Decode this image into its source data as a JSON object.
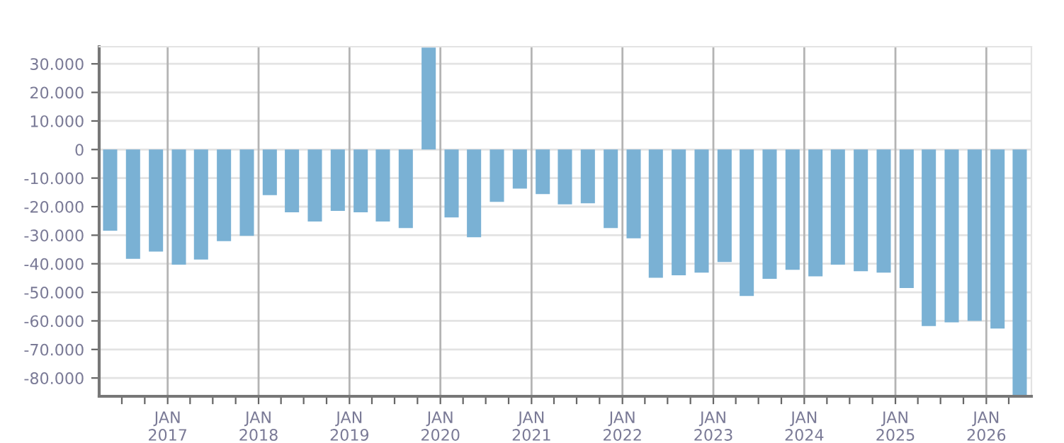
{
  "chart_data": {
    "type": "bar",
    "color": "#7ab1d4",
    "x": [
      "2016-05-15",
      "2016-08-15",
      "2016-11-15",
      "2017-02-15",
      "2017-05-15",
      "2017-08-15",
      "2017-11-15",
      "2018-02-15",
      "2018-05-15",
      "2018-08-15",
      "2018-11-15",
      "2019-02-15",
      "2019-05-15",
      "2019-08-15",
      "2019-11-15",
      "2020-02-15",
      "2020-05-15",
      "2020-08-15",
      "2020-11-15",
      "2021-02-15",
      "2021-05-15",
      "2021-08-15",
      "2021-11-15",
      "2022-02-15",
      "2022-05-15",
      "2022-08-15",
      "2022-11-15",
      "2023-02-15",
      "2023-05-15",
      "2023-08-15",
      "2023-11-15",
      "2024-02-15",
      "2024-05-15",
      "2024-08-15",
      "2024-11-15",
      "2025-02-15",
      "2025-05-15",
      "2025-08-15",
      "2025-11-15",
      "2026-02-15",
      "2026-05-15"
    ],
    "values": [
      -28400,
      -38300,
      -35700,
      -40300,
      -38500,
      -32100,
      -30200,
      -16000,
      -22000,
      -25200,
      -21500,
      -22000,
      -25200,
      -27500,
      35700,
      -23800,
      -30700,
      -18300,
      -13700,
      -15600,
      -19200,
      -18800,
      -27500,
      -31100,
      -44900,
      -44000,
      -43100,
      -39400,
      -51300,
      -45300,
      -42100,
      -44400,
      -40300,
      -42600,
      -43100,
      -48500,
      -61800,
      -60500,
      -60000,
      -62700,
      -86000
    ],
    "xlim": [
      "2016-04-01",
      "2026-07-01"
    ],
    "xticks": [
      {
        "value": "2016-07-01",
        "label": null
      },
      {
        "value": "2016-10-01",
        "label": null
      },
      {
        "value": "2017-01-01",
        "label": "JAN\n2017"
      },
      {
        "value": "2017-04-01",
        "label": null
      },
      {
        "value": "2017-07-01",
        "label": null
      },
      {
        "value": "2017-10-01",
        "label": null
      },
      {
        "value": "2018-01-01",
        "label": "JAN\n2018"
      },
      {
        "value": "2018-04-01",
        "label": null
      },
      {
        "value": "2018-07-01",
        "label": null
      },
      {
        "value": "2018-10-01",
        "label": null
      },
      {
        "value": "2019-01-01",
        "label": "JAN\n2019"
      },
      {
        "value": "2019-04-01",
        "label": null
      },
      {
        "value": "2019-07-01",
        "label": null
      },
      {
        "value": "2019-10-01",
        "label": null
      },
      {
        "value": "2020-01-01",
        "label": "JAN\n2020"
      },
      {
        "value": "2020-04-01",
        "label": null
      },
      {
        "value": "2020-07-01",
        "label": null
      },
      {
        "value": "2020-10-01",
        "label": null
      },
      {
        "value": "2021-01-01",
        "label": "JAN\n2021"
      },
      {
        "value": "2021-04-01",
        "label": null
      },
      {
        "value": "2021-07-01",
        "label": null
      },
      {
        "value": "2021-10-01",
        "label": null
      },
      {
        "value": "2022-01-01",
        "label": "JAN\n2022"
      },
      {
        "value": "2022-04-01",
        "label": null
      },
      {
        "value": "2022-07-01",
        "label": null
      },
      {
        "value": "2022-10-01",
        "label": null
      },
      {
        "value": "2023-01-01",
        "label": "JAN\n2023"
      },
      {
        "value": "2023-04-01",
        "label": null
      },
      {
        "value": "2023-07-01",
        "label": null
      },
      {
        "value": "2023-10-01",
        "label": null
      },
      {
        "value": "2024-01-01",
        "label": "JAN\n2024"
      },
      {
        "value": "2024-04-01",
        "label": null
      },
      {
        "value": "2024-07-01",
        "label": null
      },
      {
        "value": "2024-10-01",
        "label": null
      },
      {
        "value": "2025-01-01",
        "label": "JAN\n2025"
      },
      {
        "value": "2025-04-01",
        "label": null
      },
      {
        "value": "2025-07-01",
        "label": null
      },
      {
        "value": "2025-10-01",
        "label": null
      },
      {
        "value": "2026-01-01",
        "label": "JAN\n2026"
      },
      {
        "value": "2026-04-01",
        "label": null
      }
    ],
    "ylim": [
      -86400,
      36000
    ],
    "yticks": [
      {
        "value": 30000,
        "label": "30.000"
      },
      {
        "value": 20000,
        "label": "20.000"
      },
      {
        "value": 10000,
        "label": "10.000"
      },
      0,
      {
        "value": -10000,
        "label": "-10.000"
      },
      {
        "value": -20000,
        "label": "-20.000"
      },
      {
        "value": -30000,
        "label": "-30.000"
      },
      {
        "value": -40000,
        "label": "-40.000"
      },
      {
        "value": -50000,
        "label": "-50.000"
      },
      {
        "value": -60000,
        "label": "-60.000"
      },
      {
        "value": -70000,
        "label": "-70.000"
      },
      {
        "value": -80000,
        "label": "-80.000"
      }
    ],
    "grid": true
  }
}
